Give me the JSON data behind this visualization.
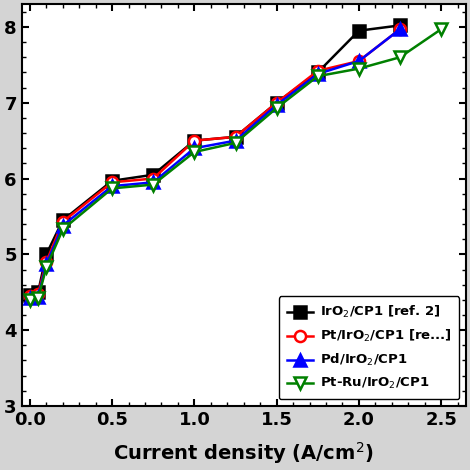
{
  "series": [
    {
      "label": "IrO$_2$/CP1 [ref. 2]",
      "color": "black",
      "marker": "s",
      "marker_face": "black",
      "marker_edge": "black",
      "x": [
        0.0,
        0.05,
        0.1,
        0.2,
        0.5,
        0.75,
        1.0,
        1.25,
        1.5,
        1.75,
        2.0,
        2.25
      ],
      "y": [
        4.46,
        4.5,
        5.0,
        5.45,
        5.97,
        6.05,
        6.5,
        6.55,
        7.0,
        7.4,
        7.95,
        8.02
      ]
    },
    {
      "label": "Pt/IrO$_2$/CP1 [re...]",
      "color": "red",
      "marker": "o",
      "marker_face": "white",
      "marker_edge": "red",
      "x": [
        0.0,
        0.05,
        0.1,
        0.2,
        0.5,
        0.75,
        1.0,
        1.25,
        1.5,
        1.75,
        2.0,
        2.25
      ],
      "y": [
        4.45,
        4.48,
        4.9,
        5.43,
        5.95,
        6.0,
        6.5,
        6.55,
        7.0,
        7.42,
        7.55,
        7.97
      ]
    },
    {
      "label": "Pd/IrO$_2$/CP1",
      "color": "blue",
      "marker": "^",
      "marker_face": "blue",
      "marker_edge": "blue",
      "x": [
        0.0,
        0.05,
        0.1,
        0.2,
        0.5,
        0.75,
        1.0,
        1.25,
        1.5,
        1.75,
        2.0,
        2.25
      ],
      "y": [
        4.42,
        4.44,
        4.87,
        5.38,
        5.9,
        5.95,
        6.4,
        6.5,
        6.97,
        7.38,
        7.55,
        7.97
      ]
    },
    {
      "label": "Pt-Ru/IrO$_2$/CP1",
      "color": "green",
      "marker": "v",
      "marker_face": "white",
      "marker_edge": "green",
      "x": [
        0.0,
        0.05,
        0.1,
        0.2,
        0.5,
        0.75,
        1.0,
        1.25,
        1.5,
        1.75,
        2.0,
        2.25,
        2.5
      ],
      "y": [
        4.4,
        4.42,
        4.83,
        5.33,
        5.87,
        5.92,
        6.35,
        6.47,
        6.93,
        7.35,
        7.45,
        7.6,
        7.97
      ]
    }
  ],
  "xlabel": "Current density (A/cm$^2$)",
  "ylabel": "",
  "xlim": [
    -0.05,
    2.65
  ],
  "ylim": [
    3.2,
    8.3
  ],
  "yticks": [
    3,
    4,
    5,
    6,
    7,
    8
  ],
  "xticks": [
    0.0,
    0.5,
    1.0,
    1.5,
    2.0,
    2.5
  ],
  "background_color": "#d4d4d4",
  "plot_background": "#ffffff",
  "legend_loc": "lower right",
  "linewidth": 1.8,
  "markersize": 8
}
